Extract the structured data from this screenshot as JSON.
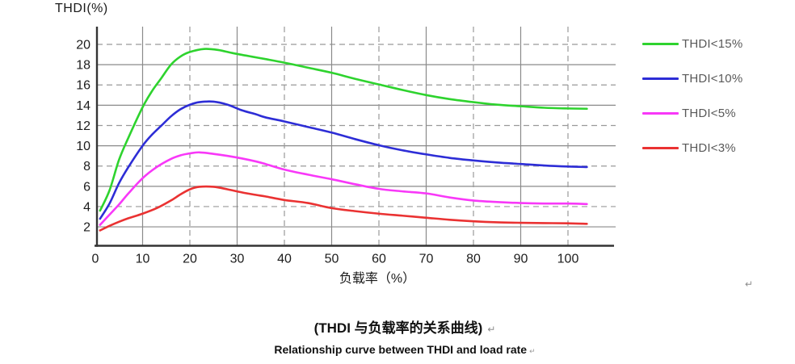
{
  "figure": {
    "background": "#ffffff"
  },
  "chart_data": {
    "type": "line",
    "title": "THDI(%)",
    "xlabel": "负载率（%）",
    "ylabel": "THDI(%)",
    "xlim": [
      0,
      110
    ],
    "ylim": [
      0,
      21.5
    ],
    "xticks": [
      0,
      10,
      20,
      30,
      40,
      50,
      60,
      70,
      80,
      90,
      100
    ],
    "yticks": [
      2,
      4,
      6,
      8,
      10,
      12,
      14,
      16,
      18,
      20
    ],
    "grid": {
      "horizontal_solid": [
        2,
        6,
        10,
        14,
        18
      ],
      "horizontal_dashed": [
        4,
        8,
        12,
        16,
        20
      ],
      "vertical_solid": [
        10,
        30,
        50,
        70,
        90
      ],
      "vertical_dashed": [
        20,
        40,
        60,
        80,
        100
      ]
    },
    "legend_position": "right",
    "colors": {
      "grid_solid": "#8a8a8a",
      "grid_dashed": "#999999",
      "axis": "#343434",
      "tick_text": "#1c1c1c"
    },
    "series": [
      {
        "name": "THDI<15%",
        "color": "#2ed32e",
        "points": [
          [
            1,
            3.6
          ],
          [
            3,
            5.6
          ],
          [
            5,
            8.6
          ],
          [
            7,
            10.8
          ],
          [
            10,
            13.8
          ],
          [
            12,
            15.4
          ],
          [
            14,
            16.7
          ],
          [
            16,
            18.0
          ],
          [
            18,
            18.8
          ],
          [
            20,
            19.25
          ],
          [
            23,
            19.55
          ],
          [
            26,
            19.45
          ],
          [
            29,
            19.15
          ],
          [
            33,
            18.8
          ],
          [
            36,
            18.55
          ],
          [
            40,
            18.2
          ],
          [
            45,
            17.7
          ],
          [
            50,
            17.2
          ],
          [
            55,
            16.6
          ],
          [
            60,
            16.05
          ],
          [
            65,
            15.5
          ],
          [
            70,
            15.0
          ],
          [
            75,
            14.6
          ],
          [
            80,
            14.3
          ],
          [
            85,
            14.05
          ],
          [
            90,
            13.9
          ],
          [
            95,
            13.75
          ],
          [
            100,
            13.68
          ],
          [
            104,
            13.65
          ]
        ]
      },
      {
        "name": "THDI<10%",
        "color": "#2d2dd6",
        "points": [
          [
            1,
            2.8
          ],
          [
            3,
            4.3
          ],
          [
            5,
            6.3
          ],
          [
            7,
            7.9
          ],
          [
            10,
            10.0
          ],
          [
            12,
            11.1
          ],
          [
            14,
            12.0
          ],
          [
            16,
            12.9
          ],
          [
            18,
            13.6
          ],
          [
            20,
            14.05
          ],
          [
            22,
            14.3
          ],
          [
            25,
            14.35
          ],
          [
            28,
            14.05
          ],
          [
            31,
            13.5
          ],
          [
            34,
            13.1
          ],
          [
            36,
            12.8
          ],
          [
            40,
            12.4
          ],
          [
            45,
            11.85
          ],
          [
            50,
            11.3
          ],
          [
            55,
            10.65
          ],
          [
            60,
            10.05
          ],
          [
            65,
            9.55
          ],
          [
            70,
            9.15
          ],
          [
            75,
            8.8
          ],
          [
            80,
            8.55
          ],
          [
            85,
            8.35
          ],
          [
            90,
            8.2
          ],
          [
            95,
            8.05
          ],
          [
            100,
            7.95
          ],
          [
            104,
            7.9
          ]
        ]
      },
      {
        "name": "THDI<5%",
        "color": "#f838f8",
        "points": [
          [
            1,
            2.2
          ],
          [
            3,
            3.2
          ],
          [
            5,
            4.2
          ],
          [
            7,
            5.3
          ],
          [
            10,
            6.8
          ],
          [
            13,
            7.9
          ],
          [
            16,
            8.7
          ],
          [
            18,
            9.05
          ],
          [
            20,
            9.25
          ],
          [
            22,
            9.35
          ],
          [
            25,
            9.2
          ],
          [
            28,
            9.0
          ],
          [
            31,
            8.75
          ],
          [
            34,
            8.45
          ],
          [
            36,
            8.2
          ],
          [
            40,
            7.65
          ],
          [
            45,
            7.15
          ],
          [
            50,
            6.7
          ],
          [
            55,
            6.2
          ],
          [
            60,
            5.75
          ],
          [
            65,
            5.5
          ],
          [
            70,
            5.3
          ],
          [
            75,
            4.9
          ],
          [
            80,
            4.6
          ],
          [
            85,
            4.45
          ],
          [
            90,
            4.35
          ],
          [
            95,
            4.3
          ],
          [
            100,
            4.3
          ],
          [
            104,
            4.25
          ]
        ]
      },
      {
        "name": "THDI<3%",
        "color": "#ea3232",
        "points": [
          [
            1,
            1.65
          ],
          [
            3,
            2.1
          ],
          [
            5,
            2.5
          ],
          [
            7,
            2.85
          ],
          [
            10,
            3.3
          ],
          [
            13,
            3.85
          ],
          [
            16,
            4.6
          ],
          [
            18,
            5.2
          ],
          [
            20,
            5.7
          ],
          [
            22,
            5.95
          ],
          [
            25,
            5.95
          ],
          [
            28,
            5.7
          ],
          [
            31,
            5.4
          ],
          [
            34,
            5.15
          ],
          [
            36,
            5.0
          ],
          [
            40,
            4.65
          ],
          [
            45,
            4.35
          ],
          [
            50,
            3.85
          ],
          [
            55,
            3.55
          ],
          [
            60,
            3.3
          ],
          [
            65,
            3.1
          ],
          [
            70,
            2.9
          ],
          [
            75,
            2.7
          ],
          [
            80,
            2.55
          ],
          [
            85,
            2.45
          ],
          [
            90,
            2.4
          ],
          [
            95,
            2.37
          ],
          [
            100,
            2.35
          ],
          [
            104,
            2.3
          ]
        ]
      }
    ]
  },
  "captions": {
    "chinese": "(THDI 与负载率的关系曲线)",
    "english": "Relationship curve between THDI and load rate"
  },
  "marks": {
    "after_chart": "↵",
    "after_chinese": "↵",
    "after_english": "↵"
  }
}
